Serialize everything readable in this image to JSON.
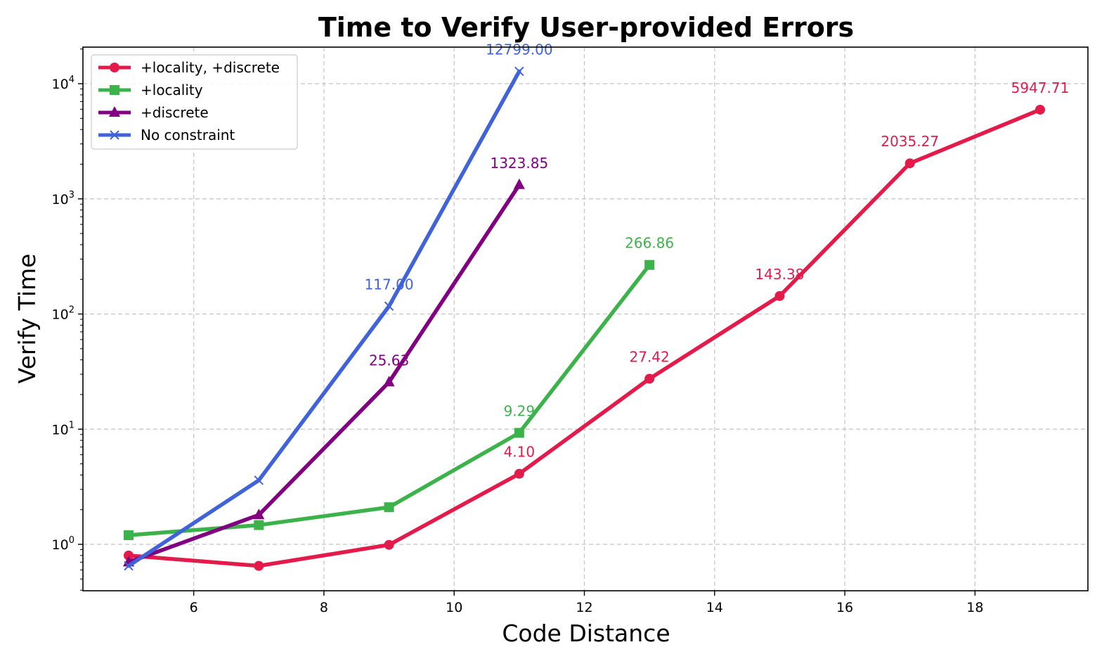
{
  "chart_data": {
    "type": "line",
    "title": "Time to Verify User-provided Errors",
    "xlabel": "Code Distance",
    "ylabel": "Verify Time",
    "yscale": "log",
    "xlim": [
      4.3,
      19.7
    ],
    "ylim": [
      0.4,
      21000
    ],
    "x_ticks": [
      6,
      8,
      10,
      12,
      14,
      16,
      18
    ],
    "y_ticks": [
      1,
      10,
      100,
      1000,
      10000
    ],
    "y_tick_labels": [
      {
        "base": "10",
        "exp": "0"
      },
      {
        "base": "10",
        "exp": "1"
      },
      {
        "base": "10",
        "exp": "2"
      },
      {
        "base": "10",
        "exp": "3"
      },
      {
        "base": "10",
        "exp": "4"
      }
    ],
    "grid": true,
    "legend_position": "upper-left",
    "series": [
      {
        "name": "+locality, +discrete",
        "color": "#e31a4a",
        "marker": "circle",
        "x": [
          5,
          7,
          9,
          11,
          13,
          15,
          17,
          19
        ],
        "y": [
          0.8,
          0.65,
          0.99,
          4.1,
          27.42,
          143.38,
          2035.27,
          5947.71
        ],
        "labels": [
          {
            "index": 3,
            "text": "4.10"
          },
          {
            "index": 4,
            "text": "27.42"
          },
          {
            "index": 5,
            "text": "143.38"
          },
          {
            "index": 6,
            "text": "2035.27"
          },
          {
            "index": 7,
            "text": "5947.71"
          }
        ]
      },
      {
        "name": "+locality",
        "color": "#3cb34a",
        "marker": "square",
        "x": [
          5,
          7,
          9,
          11,
          13
        ],
        "y": [
          1.2,
          1.47,
          2.1,
          9.29,
          266.86
        ],
        "labels": [
          {
            "index": 3,
            "text": "9.29"
          },
          {
            "index": 4,
            "text": "266.86"
          }
        ]
      },
      {
        "name": "+discrete",
        "color": "#800080",
        "marker": "triangle",
        "x": [
          5,
          7,
          9,
          11
        ],
        "y": [
          0.7,
          1.8,
          25.63,
          1323.85
        ],
        "labels": [
          {
            "index": 2,
            "text": "25.63"
          },
          {
            "index": 3,
            "text": "1323.85"
          }
        ]
      },
      {
        "name": "No constraint",
        "color": "#4163d9",
        "marker": "x",
        "x": [
          5,
          7,
          9,
          11
        ],
        "y": [
          0.65,
          3.6,
          117.0,
          12799.0
        ],
        "labels": [
          {
            "index": 2,
            "text": "117.00"
          },
          {
            "index": 3,
            "text": "12799.00"
          }
        ]
      }
    ]
  }
}
